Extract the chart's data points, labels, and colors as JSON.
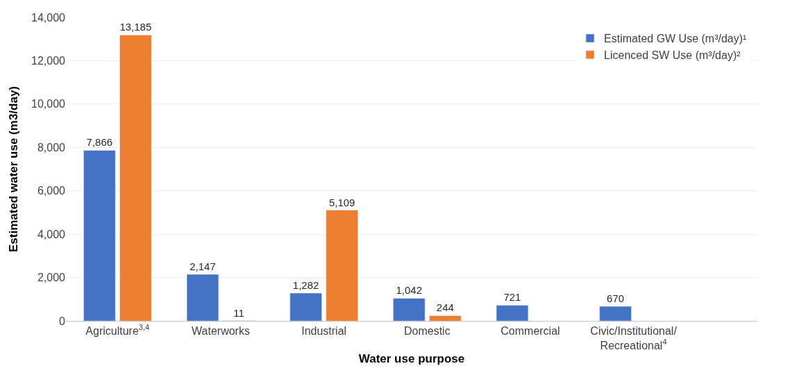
{
  "chart_data": {
    "type": "bar",
    "xlabel": "Water use purpose",
    "ylabel": "Estimated water use (m3/day)",
    "categories": [
      "Agriculture$^{3,4}$",
      "Waterworks",
      "Industrial",
      "Domestic",
      "Commercial",
      "Civic/Institutional/\nRecreational$^{4}$"
    ],
    "series": [
      {
        "name": "Estimated GW Use (m³/day)¹",
        "color": "#4472c4",
        "values": [
          7866,
          2147,
          1282,
          1042,
          721,
          670
        ],
        "value_labels": [
          "7,866",
          "2,147",
          "1,282",
          "1,042",
          "721",
          "670"
        ]
      },
      {
        "name": "Licenced SW Use (m³/day)²",
        "color": "#ed7d31",
        "values": [
          13185,
          11,
          5109,
          244,
          null,
          null
        ],
        "value_labels": [
          "13,185",
          "11",
          "5,109",
          "244",
          null,
          null
        ]
      }
    ],
    "ylim": [
      0,
      14000
    ],
    "yticks": [
      {
        "value": 0,
        "label": "0"
      },
      {
        "value": 2000,
        "label": "2,000"
      },
      {
        "value": 4000,
        "label": "4,000"
      },
      {
        "value": 6000,
        "label": "6,000"
      },
      {
        "value": 8000,
        "label": "8,000"
      },
      {
        "value": 10000,
        "label": "10,000"
      },
      {
        "value": 12000,
        "label": "12,000"
      },
      {
        "value": 14000,
        "label": "14,000"
      }
    ],
    "grid": "y",
    "legend": "top right"
  }
}
